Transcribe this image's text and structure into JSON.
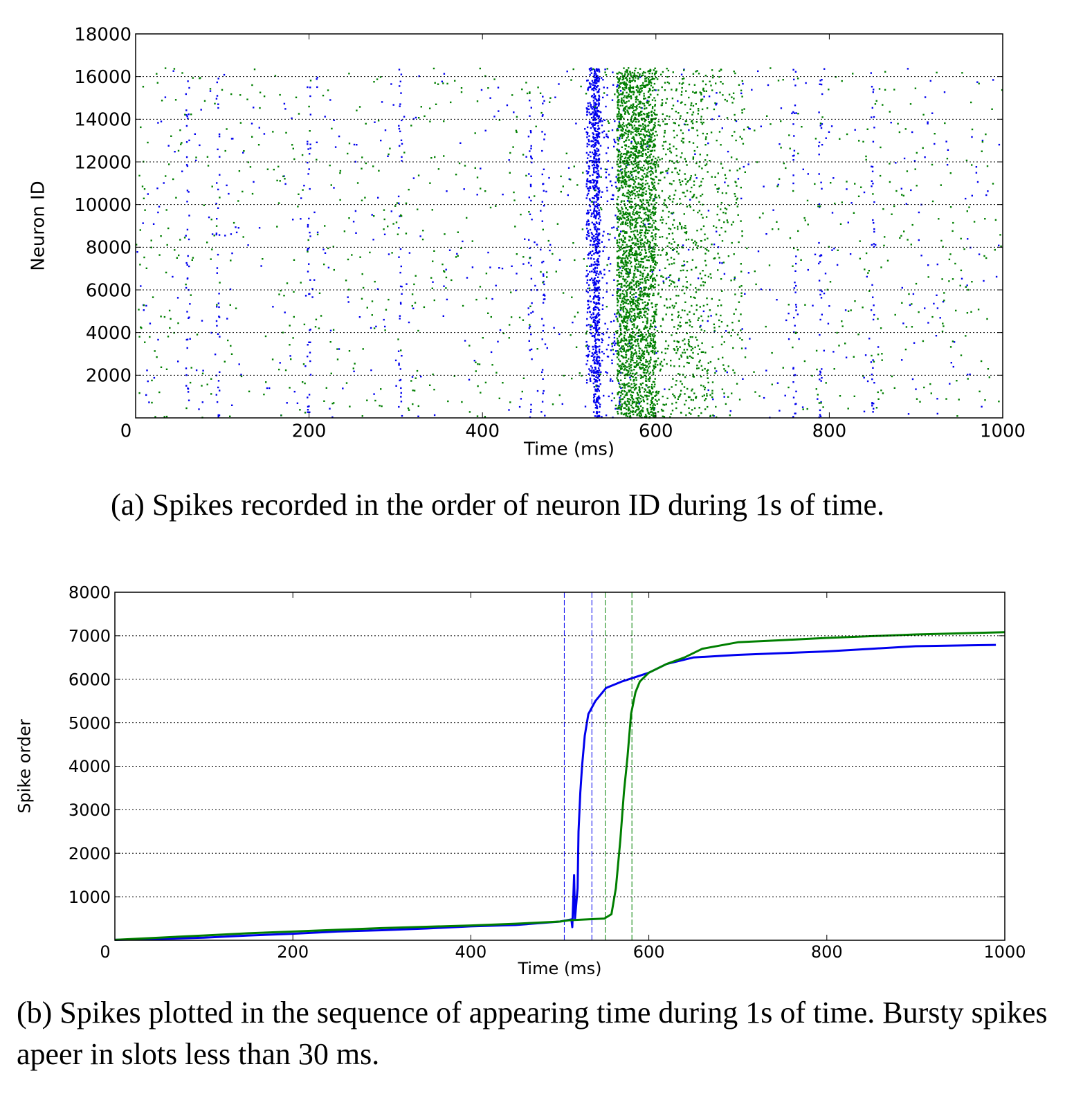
{
  "colors": {
    "series_a": "#0000ee",
    "series_b": "#007f00",
    "grid": "#000000"
  },
  "chart_data": [
    {
      "type": "scatter",
      "xlabel": "Time (ms)",
      "ylabel": "Neuron ID",
      "xlim": [
        0,
        1000
      ],
      "ylim": [
        0,
        18000
      ],
      "x_ticks": [
        0,
        200,
        400,
        600,
        800,
        1000
      ],
      "y_ticks": [
        2000,
        4000,
        6000,
        8000,
        10000,
        12000,
        14000,
        16000,
        18000
      ],
      "y_tick_labels": [
        "2000",
        "4000",
        "6000",
        "8000",
        "10000",
        "12000",
        "14000",
        "16000",
        "18000"
      ],
      "x_tick_labels": [
        "0",
        "200",
        "400",
        "600",
        "800",
        "1000"
      ],
      "grid": "horizontal dotted",
      "neuron_id_max": 16400,
      "series": [
        {
          "color": "blue",
          "sparse_spikes_per_1000ms": 520,
          "bursts": [
            {
              "t_start": 520,
              "t_end": 528,
              "id_min": 1600,
              "id_max": 16400,
              "density": 260
            },
            {
              "t_start": 528,
              "t_end": 535,
              "id_min": 0,
              "id_max": 16400,
              "density": 700
            },
            {
              "t_start": 535,
              "t_end": 560,
              "id_min": 0,
              "id_max": 16400,
              "density": 160
            }
          ],
          "column_times": [
            60,
            95,
            200,
            305,
            455,
            470,
            760,
            790,
            850
          ]
        },
        {
          "color": "green",
          "sparse_spikes_per_1000ms": 900,
          "bursts": [
            {
              "t_start": 555,
              "t_end": 600,
              "id_min": 0,
              "id_max": 16400,
              "density": 2600
            },
            {
              "t_start": 600,
              "t_end": 660,
              "id_min": 0,
              "id_max": 16400,
              "density": 600
            },
            {
              "t_start": 660,
              "t_end": 700,
              "id_min": 0,
              "id_max": 16400,
              "density": 160
            }
          ],
          "column_times": []
        }
      ]
    },
    {
      "type": "line",
      "xlabel": "Time (ms)",
      "ylabel": "Spike order",
      "xlim": [
        0,
        1000
      ],
      "ylim": [
        0,
        8000
      ],
      "x_ticks": [
        0,
        200,
        400,
        600,
        800,
        1000
      ],
      "y_ticks": [
        1000,
        2000,
        3000,
        4000,
        5000,
        6000,
        7000,
        8000
      ],
      "y_tick_labels": [
        "1000",
        "2000",
        "3000",
        "4000",
        "5000",
        "6000",
        "7000",
        "8000"
      ],
      "x_tick_labels": [
        "0",
        "200",
        "400",
        "600",
        "800",
        "1000"
      ],
      "grid": "horizontal dotted",
      "vertical_markers": [
        {
          "x": 505,
          "color": "blue"
        },
        {
          "x": 536,
          "color": "blue"
        },
        {
          "x": 551,
          "color": "green"
        },
        {
          "x": 581,
          "color": "green"
        }
      ],
      "series": [
        {
          "color": "blue",
          "x": [
            0,
            50,
            100,
            150,
            200,
            250,
            300,
            350,
            400,
            450,
            500,
            513,
            514,
            516,
            517,
            520,
            521,
            523,
            525,
            528,
            532,
            540,
            552,
            570,
            600,
            620,
            650,
            700,
            750,
            800,
            850,
            900,
            990
          ],
          "y": [
            10,
            30,
            60,
            110,
            150,
            200,
            230,
            270,
            320,
            350,
            430,
            480,
            300,
            1500,
            500,
            1200,
            2500,
            3400,
            4000,
            4700,
            5200,
            5500,
            5800,
            5950,
            6150,
            6350,
            6500,
            6560,
            6600,
            6640,
            6700,
            6760,
            6790
          ]
        },
        {
          "color": "green",
          "x": [
            0,
            50,
            100,
            150,
            200,
            250,
            300,
            350,
            400,
            450,
            500,
            510,
            550,
            558,
            563,
            568,
            572,
            576,
            580,
            585,
            590,
            600,
            620,
            640,
            660,
            700,
            750,
            800,
            900,
            1000
          ],
          "y": [
            10,
            60,
            110,
            160,
            200,
            240,
            280,
            310,
            340,
            380,
            430,
            460,
            500,
            600,
            1200,
            2300,
            3400,
            4200,
            5200,
            5700,
            5950,
            6150,
            6350,
            6500,
            6700,
            6850,
            6900,
            6950,
            7030,
            7080
          ]
        }
      ]
    }
  ],
  "captions": {
    "a": "(a) Spikes recorded in the order of neuron ID during 1s of time.",
    "b": "(b) Spikes plotted in the sequence of appearing time during 1s of time. Bursty spikes apeer in slots less than 30 ms."
  }
}
